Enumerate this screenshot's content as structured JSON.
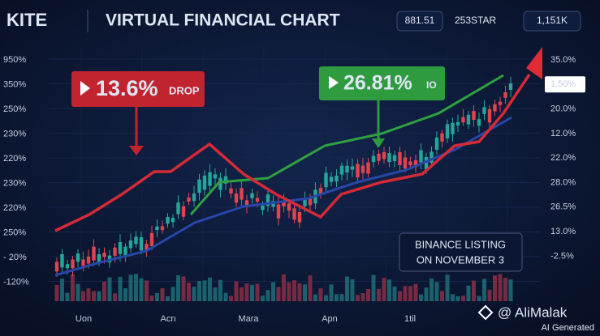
{
  "header": {
    "brand": "KITE",
    "title": "VIRTUAL FINANCIAL CHART",
    "stats": [
      "881.51",
      "253STAR",
      "1,151K"
    ]
  },
  "left_axis": [
    "950%",
    "350%",
    "250%",
    "230%",
    "220%",
    "230%",
    "220%",
    "250%",
    "- 20%",
    "-120%"
  ],
  "right_axis": [
    "35.0%",
    "1.50%",
    "20.0%",
    "12.0%",
    "22.0%",
    "28.0%",
    "26.5%",
    "13.0%",
    "-2.5%"
  ],
  "x_axis": [
    "Uon",
    "Acn",
    "Mara",
    "Apn",
    "1til"
  ],
  "callouts": [
    {
      "value": "13.6%",
      "note": "DROP"
    },
    {
      "value": "26.81%",
      "note": "IO"
    }
  ],
  "notice": [
    "BINANCE LISTING",
    "ON NOVEMBER 3"
  ],
  "watermark": {
    "handle": "@ AliMalak",
    "note": "AI Generated"
  }
}
